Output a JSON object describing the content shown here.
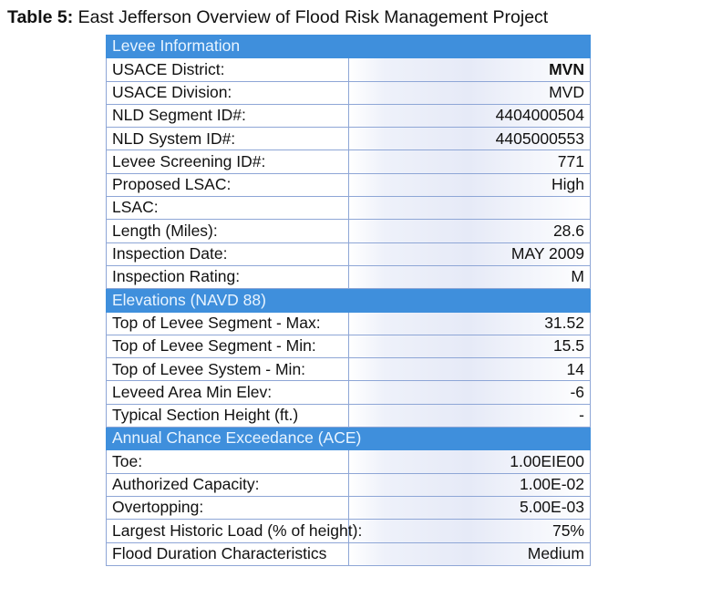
{
  "title": {
    "label": "Table 5:",
    "text": "East Jefferson Overview of Flood Risk Management Project"
  },
  "sections": [
    {
      "heading": "Levee Information",
      "rows": [
        {
          "label": "USACE District:",
          "value": "MVN"
        },
        {
          "label": "USACE Division:",
          "value": "MVD"
        },
        {
          "label": "NLD Segment ID#:",
          "value": "4404000504"
        },
        {
          "label": "NLD System ID#:",
          "value": "4405000553"
        },
        {
          "label": "Levee Screening ID#:",
          "value": "771"
        },
        {
          "label": "Proposed LSAC:",
          "value": "High"
        },
        {
          "label": "LSAC:",
          "value": ""
        },
        {
          "label": "Length (Miles):",
          "value": "28.6"
        },
        {
          "label": "Inspection Date:",
          "value": "MAY 2009"
        },
        {
          "label": "Inspection Rating:",
          "value": "M"
        }
      ]
    },
    {
      "heading": "Elevations (NAVD 88)",
      "rows": [
        {
          "label": "Top of Levee Segment - Max:",
          "value": "31.52"
        },
        {
          "label": "Top of Levee Segment - Min:",
          "value": "15.5"
        },
        {
          "label": "Top of Levee System - Min:",
          "value": "14"
        },
        {
          "label": "Leveed Area Min Elev:",
          "value": "-6"
        },
        {
          "label": "Typical Section Height (ft.)",
          "value": "-"
        }
      ]
    },
    {
      "heading": "Annual Chance Exceedance (ACE)",
      "rows": [
        {
          "label": "Toe:",
          "value": "1.00EIE00"
        },
        {
          "label": "Authorized Capacity:",
          "value": "1.00E-02"
        },
        {
          "label": "Overtopping:",
          "value": "5.00E-03"
        },
        {
          "label": "Largest Historic Load (% of height):",
          "value": "75%"
        },
        {
          "label": "Flood Duration Characteristics",
          "value": "Medium"
        }
      ]
    }
  ],
  "colors": {
    "section_header": "#3f8fdc",
    "grid": "#8ea6d6"
  }
}
